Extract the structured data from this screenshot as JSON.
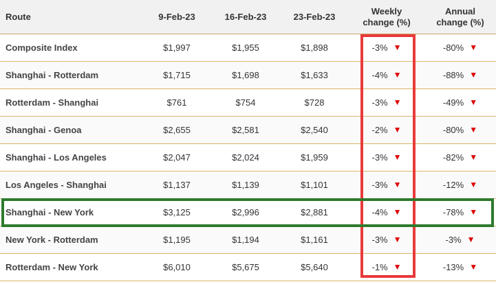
{
  "headers": {
    "route": "Route",
    "d1": "9-Feb-23",
    "d2": "16-Feb-23",
    "d3": "23-Feb-23",
    "weekly_line1": "Weekly",
    "weekly_line2": "change (%)",
    "annual_line1": "Annual",
    "annual_line2": "change (%)"
  },
  "arrow_glyph": "▼",
  "colors": {
    "down_arrow": "#dd0000",
    "weekly_highlight": "#e83a3a",
    "row_highlight": "#2e7a2e",
    "row_rule": "#d8b46a"
  },
  "rows": [
    {
      "route": "Composite Index",
      "d1": "$1,997",
      "d2": "$1,955",
      "d3": "$1,898",
      "weekly": "-3%",
      "annual": "-80%"
    },
    {
      "route": "Shanghai - Rotterdam",
      "d1": "$1,715",
      "d2": "$1,698",
      "d3": "$1,633",
      "weekly": "-4%",
      "annual": "-88%"
    },
    {
      "route": "Rotterdam - Shanghai",
      "d1": "$761",
      "d2": "$754",
      "d3": "$728",
      "weekly": "-3%",
      "annual": "-49%"
    },
    {
      "route": "Shanghai - Genoa",
      "d1": "$2,655",
      "d2": "$2,581",
      "d3": "$2,540",
      "weekly": "-2%",
      "annual": "-80%"
    },
    {
      "route": "Shanghai - Los Angeles",
      "d1": "$2,047",
      "d2": "$2,024",
      "d3": "$1,959",
      "weekly": "-3%",
      "annual": "-82%"
    },
    {
      "route": "Los Angeles - Shanghai",
      "d1": "$1,137",
      "d2": "$1,139",
      "d3": "$1,101",
      "weekly": "-3%",
      "annual": "-12%"
    },
    {
      "route": "Shanghai - New York",
      "d1": "$3,125",
      "d2": "$2,996",
      "d3": "$2,881",
      "weekly": "-4%",
      "annual": "-78%"
    },
    {
      "route": "New York - Rotterdam",
      "d1": "$1,195",
      "d2": "$1,194",
      "d3": "$1,161",
      "weekly": "-3%",
      "annual": "-3%"
    },
    {
      "route": "Rotterdam - New York",
      "d1": "$6,010",
      "d2": "$5,675",
      "d3": "$5,640",
      "weekly": "-1%",
      "annual": "-13%"
    }
  ]
}
